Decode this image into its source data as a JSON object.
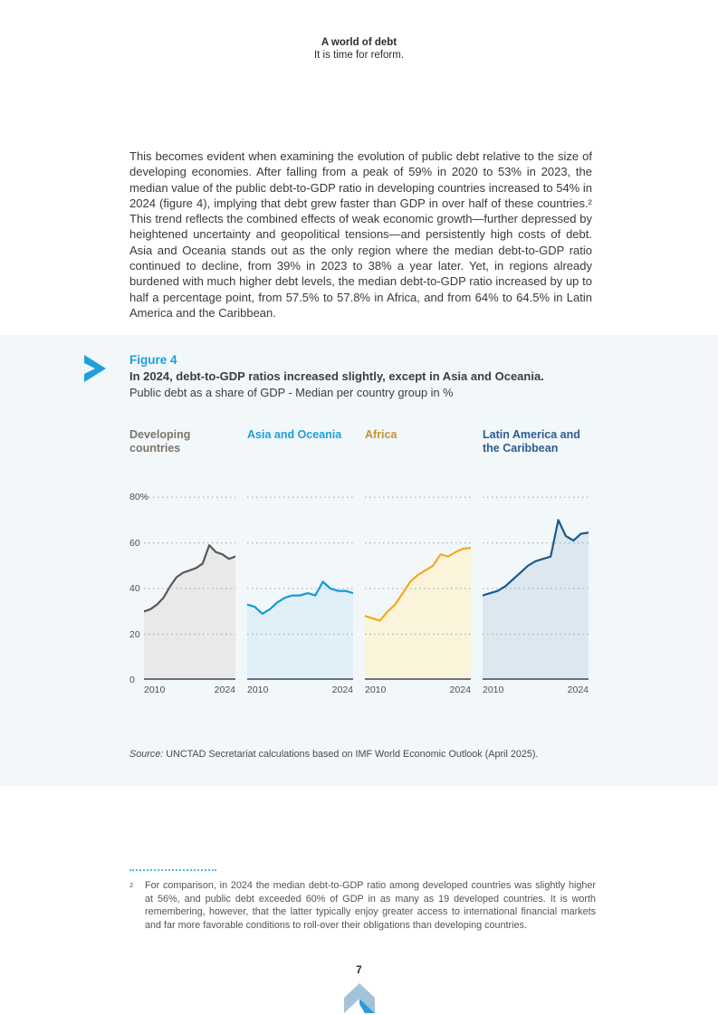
{
  "header": {
    "title": "A world of debt",
    "subtitle": "It is time for reform."
  },
  "body": {
    "paragraph": "This becomes evident when examining the evolution of public debt relative to the size of developing economies. After falling from a peak of 59% in 2020 to 53% in 2023, the median value of the public debt-to-GDP ratio in developing countries increased to 54% in 2024 (figure 4), implying that debt grew faster than GDP in over half of these countries.² This trend reflects the combined effects of weak economic growth—further depressed by heightened uncertainty and geopolitical tensions—and persistently high costs of debt. Asia and Oceania stands out as the only region where the median debt-to-GDP ratio continued to decline, from 39% in 2023 to 38% a year later. Yet, in regions already burdened with much higher debt levels, the median debt-to-GDP ratio increased by up to half a percentage point, from 57.5% to 57.8% in Africa, and from 64% to 64.5% in Latin America and the Caribbean."
  },
  "figure": {
    "label": "Figure 4",
    "accent_color": "#1da0dc",
    "title": "In 2024, debt-to-GDP ratios increased slightly, except in Asia and Oceania.",
    "subtitle": "Public debt as a share of GDP - Median per country group in %",
    "source_label": "Source:",
    "source_text": "UNCTAD Secretariat calculations based on IMF World Economic Outlook (April 2025)."
  },
  "chart_data": {
    "type": "line",
    "x": [
      2010,
      2011,
      2012,
      2013,
      2014,
      2015,
      2016,
      2017,
      2018,
      2019,
      2020,
      2021,
      2022,
      2023,
      2024
    ],
    "x_axis_labels": [
      "2010",
      "2024"
    ],
    "ylim": [
      0,
      84
    ],
    "grid": true,
    "y_ticks": [
      {
        "label": "80%",
        "value": 80
      },
      {
        "label": "60",
        "value": 60
      },
      {
        "label": "40",
        "value": 40
      },
      {
        "label": "20",
        "value": 20
      },
      {
        "label": "0",
        "value": 0
      }
    ],
    "charts": [
      {
        "id": "developing-countries",
        "title": "Developing countries",
        "title_color": "#7d7669",
        "line_color": "#58595b",
        "fill_color": "#e9e9e9",
        "values": [
          30,
          31,
          33,
          36,
          41,
          45,
          47,
          48,
          49,
          51,
          59,
          56,
          55,
          53,
          54
        ]
      },
      {
        "id": "asia-and-oceania",
        "title": "Asia and Oceania",
        "title_color": "#1da0dc",
        "line_color": "#129bd5",
        "fill_color": "#e1eff8",
        "values": [
          33,
          32,
          29,
          31,
          34,
          36,
          37,
          37,
          38,
          37,
          43,
          40,
          39,
          39,
          38
        ]
      },
      {
        "id": "africa",
        "title": "Africa",
        "title_color": "#c6913c",
        "line_color": "#f6a81c",
        "fill_color": "#f9f4da",
        "values": [
          28,
          27,
          26,
          30,
          33,
          38,
          43,
          46,
          48,
          50,
          55,
          54,
          56,
          57.5,
          57.8
        ]
      },
      {
        "id": "latin-america-and-the-caribbean",
        "title": "Latin America and the Caribbean",
        "title_color": "#2b5d8f",
        "line_color": "#1c5a8c",
        "fill_color": "#dce7f0",
        "values": [
          37,
          38,
          39,
          41,
          44,
          47,
          50,
          52,
          53,
          54,
          70,
          63,
          61,
          64,
          64.5
        ]
      }
    ]
  },
  "footnote": {
    "marker": "2",
    "text": "For comparison, in 2024 the median debt-to-GDP ratio among developed countries was slightly higher at 56%, and public debt exceeded 60% of GDP in as many as 19 developed countries. It is worth remembering, however, that the latter typically enjoy greater access to international financial markets and far more favorable conditions to roll-over their obligations than developing countries."
  },
  "footer": {
    "page_number": "7"
  }
}
